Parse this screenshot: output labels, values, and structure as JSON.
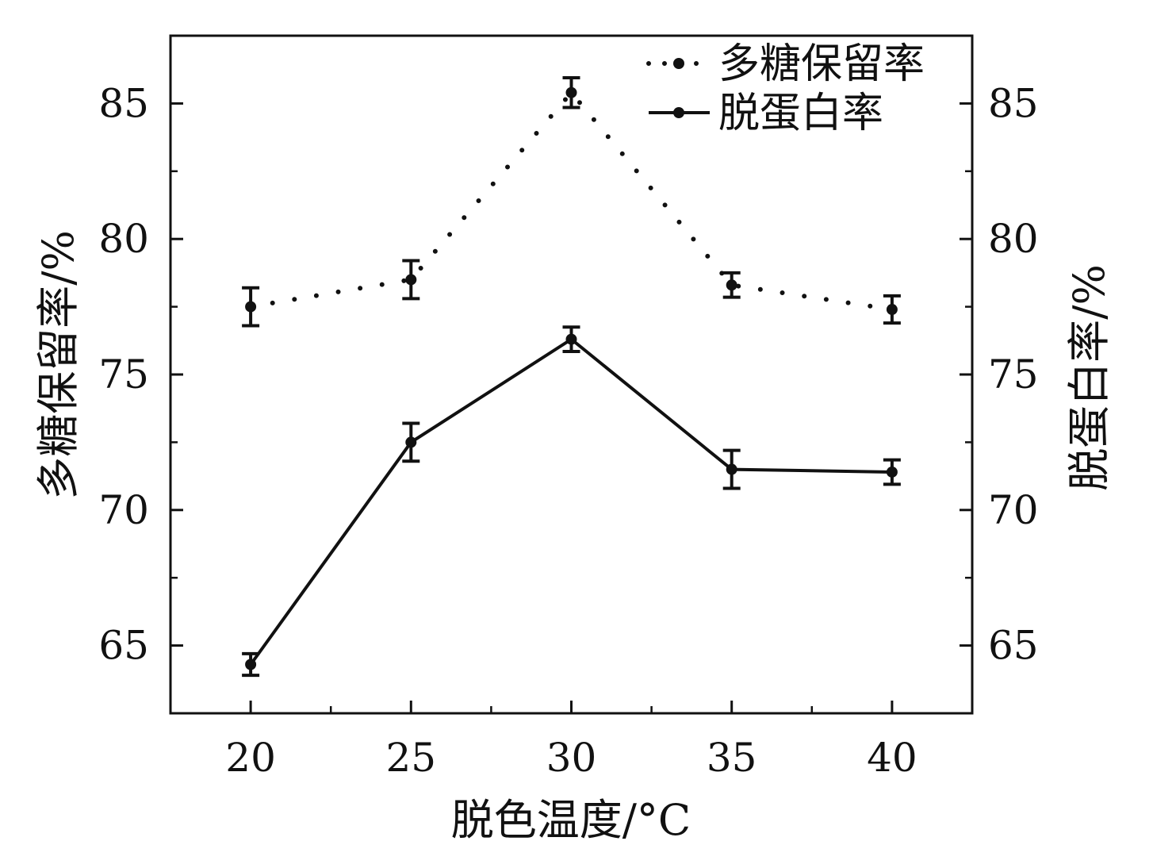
{
  "chart_data": {
    "type": "line",
    "xlabel": "脱色温度/°C",
    "ylabel_left": "多糖保留率/%",
    "ylabel_right": "脱蛋白率/%",
    "x": [
      20,
      25,
      30,
      35,
      40
    ],
    "xlim": [
      17.5,
      42.5
    ],
    "ylim": [
      62.5,
      87.5
    ],
    "x_ticks": [
      20,
      25,
      30,
      35,
      40
    ],
    "y_ticks": [
      65,
      70,
      75,
      80,
      85
    ],
    "grid": false,
    "legend_position": "top-right",
    "series": [
      {
        "name": "多糖保留率",
        "style": "dotted",
        "color": "#111111",
        "values": [
          77.5,
          78.5,
          85.4,
          78.3,
          77.4
        ],
        "errors": [
          0.7,
          0.7,
          0.55,
          0.45,
          0.5
        ]
      },
      {
        "name": "脱蛋白率",
        "style": "solid",
        "color": "#111111",
        "values": [
          64.3,
          72.5,
          76.3,
          71.5,
          71.4
        ],
        "errors": [
          0.4,
          0.7,
          0.45,
          0.7,
          0.45
        ]
      }
    ]
  }
}
